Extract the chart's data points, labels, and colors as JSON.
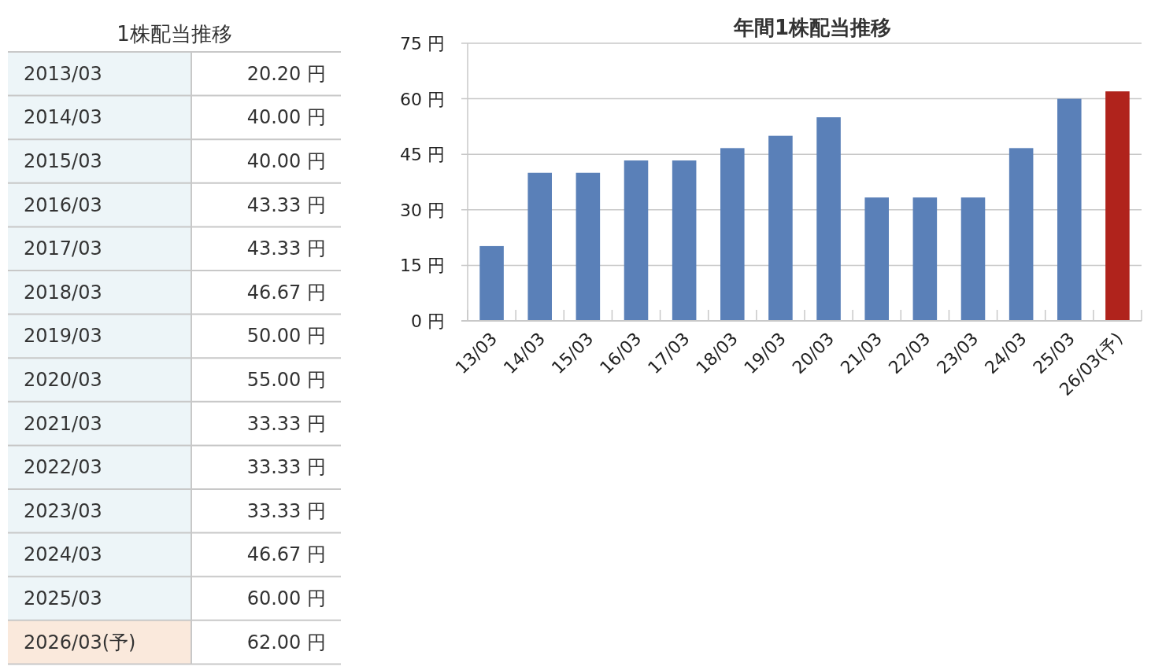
{
  "chart_data": [
    {
      "type": "other",
      "title": "1株配当推移",
      "categories": [
        "2013/03",
        "2014/03",
        "2015/03",
        "2016/03",
        "2017/03",
        "2018/03",
        "2019/03",
        "2020/03",
        "2021/03",
        "2022/03",
        "2023/03",
        "2024/03",
        "2025/03",
        "2026/03(予)"
      ],
      "value_labels": [
        "20.20 円",
        "40.00 円",
        "40.00 円",
        "43.33 円",
        "43.33 円",
        "46.67 円",
        "50.00 円",
        "55.00 円",
        "33.33 円",
        "33.33 円",
        "33.33 円",
        "46.67 円",
        "60.00 円",
        "62.00 円"
      ],
      "colors": [
        "#edf5f8",
        "#edf5f8",
        "#edf5f8",
        "#edf5f8",
        "#edf5f8",
        "#edf5f8",
        "#edf5f8",
        "#edf5f8",
        "#edf5f8",
        "#edf5f8",
        "#edf5f8",
        "#edf5f8",
        "#edf5f8",
        "#fae9dc"
      ]
    },
    {
      "type": "bar",
      "title": "年間1株配当推移",
      "categories": [
        "13/03",
        "14/03",
        "15/03",
        "16/03",
        "17/03",
        "18/03",
        "19/03",
        "20/03",
        "21/03",
        "22/03",
        "23/03",
        "24/03",
        "25/03",
        "26/03(予)"
      ],
      "values": [
        20.2,
        40,
        40,
        43.33,
        43.33,
        46.67,
        50,
        55,
        33.33,
        33.33,
        33.33,
        46.67,
        60,
        62
      ],
      "colors": [
        "#5a80b8",
        "#5a80b8",
        "#5a80b8",
        "#5a80b8",
        "#5a80b8",
        "#5a80b8",
        "#5a80b8",
        "#5a80b8",
        "#5a80b8",
        "#5a80b8",
        "#5a80b8",
        "#5a80b8",
        "#5a80b8",
        "#b0231c"
      ],
      "ylim": [
        0,
        75
      ],
      "yticks": [
        {
          "value": 0,
          "label": "0 円"
        },
        {
          "value": 15,
          "label": "15 円"
        },
        {
          "value": 30,
          "label": "30 円"
        },
        {
          "value": 45,
          "label": "45 円"
        },
        {
          "value": 60,
          "label": "60 円"
        },
        {
          "value": 75,
          "label": "75 円"
        }
      ],
      "grid": "y"
    }
  ]
}
